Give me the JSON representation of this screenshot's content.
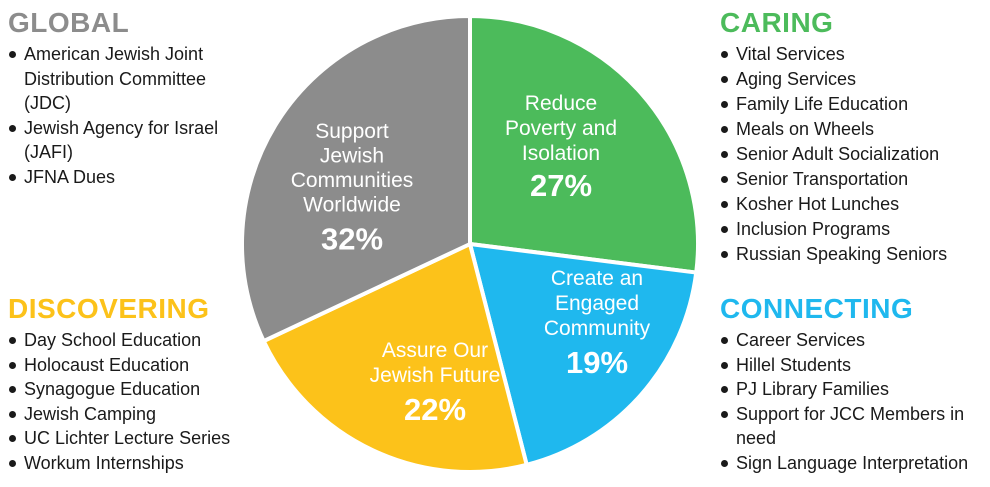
{
  "chart_data": {
    "type": "pie",
    "title": "",
    "slices": [
      {
        "name": "Reduce Poverty and Isolation",
        "lines": [
          "Reduce",
          "Poverty and",
          "Isolation"
        ],
        "value": 27,
        "label": "27%",
        "color": "#4cbb5b"
      },
      {
        "name": "Create an Engaged Community",
        "lines": [
          "Create an",
          "Engaged",
          "Community"
        ],
        "value": 19,
        "label": "19%",
        "color": "#1fb8ee"
      },
      {
        "name": "Assure Our Jewish Future",
        "lines": [
          "Assure Our",
          "Jewish Future"
        ],
        "value": 22,
        "label": "22%",
        "color": "#fcc21a"
      },
      {
        "name": "Support Jewish Communities Worldwide",
        "lines": [
          "Support",
          "Jewish",
          "Communities",
          "Worldwide"
        ],
        "value": 32,
        "label": "32%",
        "color": "#8c8c8c"
      }
    ]
  },
  "sections": {
    "global": {
      "heading": "GLOBAL",
      "color": "#8c8c8c",
      "items": [
        "American Jewish Joint Distribution Committee (JDC)",
        "Jewish Agency for Israel (JAFI)",
        "JFNA Dues"
      ]
    },
    "caring": {
      "heading": "CARING",
      "color": "#4cbb5b",
      "items": [
        "Vital Services",
        "Aging Services",
        "Family Life Education",
        "Meals on Wheels",
        "Senior Adult Socialization",
        "Senior Transportation",
        "Kosher Hot Lunches",
        "Inclusion Programs",
        "Russian Speaking Seniors"
      ]
    },
    "discovering": {
      "heading": "DISCOVERING",
      "color": "#fcc21a",
      "items": [
        "Day School Education",
        "Holocaust Education",
        "Synagogue Education",
        "Jewish Camping",
        "UC Lichter Lecture Series",
        "Workum Internships"
      ]
    },
    "connecting": {
      "heading": "CONNECTING",
      "color": "#1fb8ee",
      "items": [
        "Career Services",
        "Hillel Students",
        "PJ Library Families",
        "Support for JCC Members in need",
        "Sign Language Interpretation"
      ]
    }
  }
}
